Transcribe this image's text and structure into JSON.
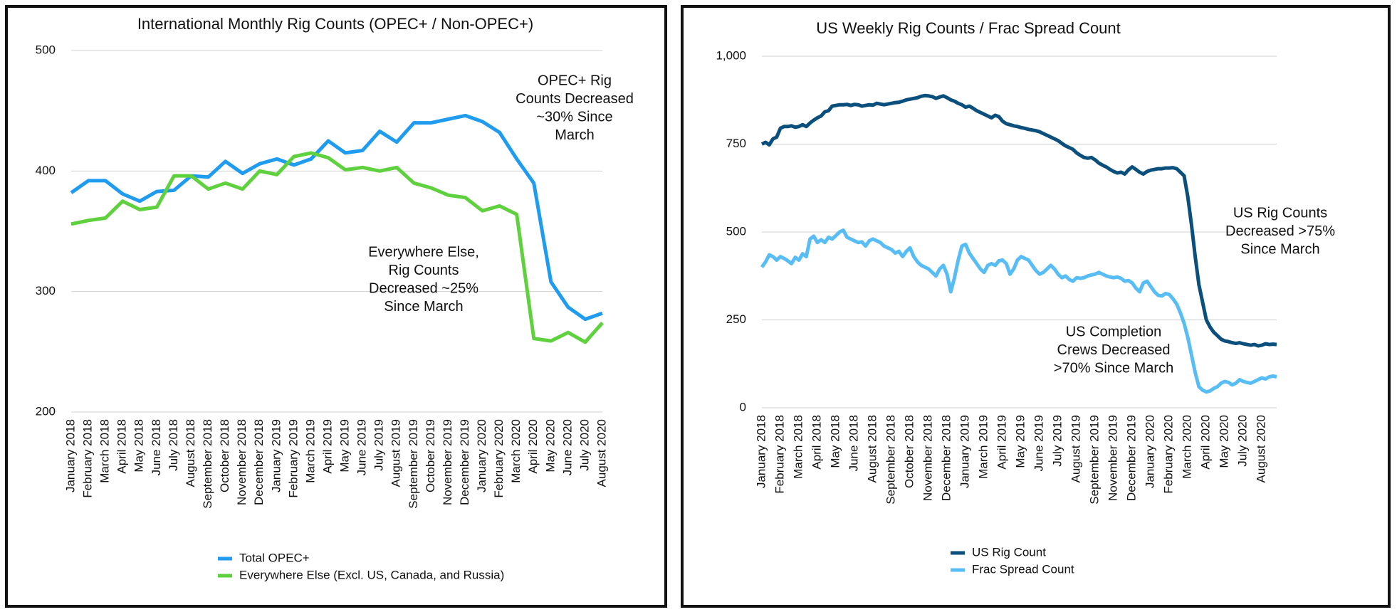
{
  "chart_data": [
    {
      "type": "line",
      "title": "International Monthly Rig Counts (OPEC+ / Non-OPEC+)",
      "categories": [
        "January 2018",
        "February 2018",
        "March 2018",
        "April 2018",
        "May 2018",
        "June 2018",
        "July 2018",
        "August 2018",
        "September 2018",
        "October 2018",
        "November 2018",
        "December 2018",
        "January 2019",
        "February 2019",
        "March 2019",
        "April 2019",
        "May 2019",
        "June 2019",
        "July 2019",
        "August 2019",
        "September 2019",
        "October 2019",
        "November 2019",
        "December 2019",
        "January 2020",
        "February 2020",
        "March 2020",
        "April 2020",
        "May 2020",
        "June 2020",
        "July 2020",
        "August 2020"
      ],
      "series": [
        {
          "name": "Total OPEC+",
          "color": "#1f9bf0",
          "values": [
            382,
            392,
            392,
            381,
            375,
            383,
            384,
            396,
            395,
            408,
            398,
            406,
            410,
            405,
            410,
            425,
            415,
            417,
            433,
            424,
            440,
            440,
            443,
            446,
            441,
            432,
            410,
            390,
            308,
            287,
            277,
            282
          ]
        },
        {
          "name": "Everywhere Else (Excl. US, Canada, and Russia)",
          "color": "#5fd13f",
          "values": [
            356,
            359,
            361,
            375,
            368,
            370,
            396,
            396,
            385,
            390,
            385,
            400,
            397,
            412,
            415,
            411,
            401,
            403,
            400,
            403,
            390,
            386,
            380,
            378,
            367,
            371,
            364,
            261,
            259,
            266,
            258,
            274
          ]
        }
      ],
      "ylim": [
        200,
        500
      ],
      "yticks": [
        200,
        300,
        400,
        500
      ],
      "grid": true,
      "annotations": [
        {
          "lines": [
            "OPEC+ Rig",
            "Counts Decreased",
            "~30% Since",
            "March"
          ]
        },
        {
          "lines": [
            "Everywhere Else,",
            "Rig Counts",
            "Decreased ~25%",
            "Since March"
          ]
        }
      ]
    },
    {
      "type": "line",
      "title": "US Weekly Rig Counts / Frac Spread Count",
      "categories": [
        "January 2018",
        null,
        null,
        null,
        null,
        "February 2018",
        null,
        null,
        null,
        null,
        "March 2018",
        null,
        null,
        null,
        null,
        "April 2018",
        null,
        null,
        null,
        null,
        "May 2018",
        null,
        null,
        null,
        null,
        "June 2018",
        null,
        null,
        null,
        null,
        "August 2018",
        null,
        null,
        null,
        null,
        "September 2018",
        null,
        null,
        null,
        null,
        "October 2018",
        null,
        null,
        null,
        null,
        "November 2018",
        null,
        null,
        null,
        null,
        "December 2018",
        null,
        null,
        null,
        null,
        "January 2019",
        null,
        null,
        null,
        null,
        "March 2019",
        null,
        null,
        null,
        null,
        "April 2019",
        null,
        null,
        null,
        null,
        "May 2019",
        null,
        null,
        null,
        null,
        "June 2019",
        null,
        null,
        null,
        null,
        "July 2019",
        null,
        null,
        null,
        null,
        "August 2019",
        null,
        null,
        null,
        null,
        "September 2019",
        null,
        null,
        null,
        null,
        "November 2019",
        null,
        null,
        null,
        null,
        "December 2019",
        null,
        null,
        null,
        null,
        "January 2020",
        null,
        null,
        null,
        null,
        "February 2020",
        null,
        null,
        null,
        null,
        "March 2020",
        null,
        null,
        null,
        null,
        "April 2020",
        null,
        null,
        null,
        null,
        "May 2020",
        null,
        null,
        null,
        null,
        "July 2020",
        null,
        null,
        null,
        null,
        "August 2020",
        null,
        null,
        null,
        null
      ],
      "series": [
        {
          "name": "US Rig Count",
          "color": "#0b4f7c",
          "values": [
            750,
            755,
            748,
            765,
            770,
            795,
            800,
            800,
            802,
            798,
            800,
            805,
            800,
            810,
            818,
            825,
            830,
            842,
            845,
            858,
            860,
            862,
            862,
            863,
            860,
            863,
            862,
            858,
            860,
            862,
            861,
            866,
            864,
            862,
            864,
            866,
            868,
            869,
            872,
            876,
            878,
            880,
            882,
            886,
            888,
            887,
            885,
            880,
            884,
            887,
            882,
            876,
            872,
            866,
            862,
            855,
            858,
            852,
            845,
            840,
            835,
            830,
            825,
            832,
            828,
            815,
            808,
            805,
            802,
            800,
            797,
            795,
            792,
            790,
            788,
            785,
            780,
            775,
            770,
            765,
            760,
            752,
            745,
            740,
            735,
            725,
            718,
            712,
            710,
            712,
            705,
            696,
            690,
            685,
            678,
            672,
            668,
            670,
            665,
            677,
            685,
            678,
            670,
            665,
            672,
            676,
            678,
            680,
            680,
            682,
            682,
            683,
            680,
            670,
            660,
            600,
            520,
            430,
            350,
            300,
            250,
            230,
            215,
            205,
            195,
            190,
            188,
            185,
            183,
            185,
            182,
            180,
            178,
            180,
            176,
            178,
            182,
            180,
            181,
            180
          ]
        },
        {
          "name": "Frac Spread Count",
          "color": "#58bdf5",
          "values": [
            400,
            415,
            435,
            430,
            420,
            430,
            425,
            418,
            410,
            428,
            420,
            438,
            430,
            480,
            488,
            470,
            478,
            470,
            485,
            480,
            490,
            500,
            505,
            485,
            480,
            475,
            470,
            472,
            460,
            475,
            480,
            475,
            470,
            460,
            455,
            450,
            440,
            445,
            430,
            445,
            455,
            430,
            415,
            405,
            400,
            395,
            385,
            375,
            395,
            405,
            380,
            330,
            370,
            420,
            460,
            465,
            440,
            425,
            410,
            395,
            385,
            405,
            410,
            405,
            418,
            420,
            410,
            380,
            395,
            420,
            430,
            425,
            420,
            405,
            390,
            380,
            385,
            395,
            405,
            395,
            380,
            370,
            375,
            365,
            360,
            370,
            368,
            370,
            375,
            378,
            380,
            385,
            380,
            375,
            372,
            370,
            372,
            368,
            360,
            362,
            355,
            340,
            330,
            355,
            360,
            345,
            330,
            320,
            318,
            325,
            322,
            310,
            295,
            270,
            240,
            200,
            150,
            100,
            60,
            50,
            45,
            48,
            55,
            60,
            70,
            75,
            72,
            65,
            70,
            80,
            75,
            72,
            70,
            75,
            80,
            85,
            82,
            88,
            90,
            88
          ]
        }
      ],
      "ylim": [
        0,
        1000
      ],
      "yticks": [
        0,
        250,
        500,
        750,
        {
          "value": 1000,
          "label": "1,000"
        }
      ],
      "grid": true,
      "annotations": [
        {
          "lines": [
            "US Rig Counts",
            "Decreased >75%",
            "Since March"
          ]
        },
        {
          "lines": [
            "US Completion",
            "Crews Decreased",
            ">70% Since March"
          ]
        }
      ]
    }
  ]
}
